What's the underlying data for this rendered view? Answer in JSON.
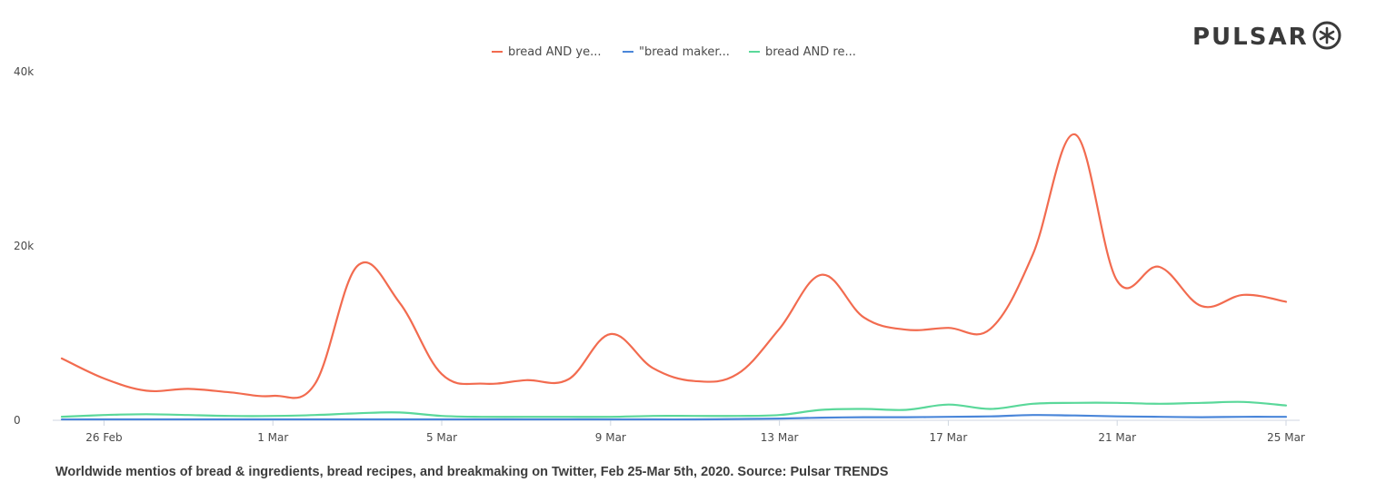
{
  "logo": {
    "text": "PULSAR"
  },
  "caption": "Worldwide mentios of bread & ingredients, bread recipes, and breakmaking on Twitter, Feb 25-Mar 5th, 2020. Source: Pulsar TRENDS",
  "chart_data": {
    "type": "line",
    "x": [
      "25 Feb",
      "26 Feb",
      "27 Feb",
      "28 Feb",
      "29 Feb",
      "1 Mar",
      "2 Mar",
      "3 Mar",
      "4 Mar",
      "5 Mar",
      "6 Mar",
      "7 Mar",
      "8 Mar",
      "9 Mar",
      "10 Mar",
      "11 Mar",
      "12 Mar",
      "13 Mar",
      "14 Mar",
      "15 Mar",
      "16 Mar",
      "17 Mar",
      "18 Mar",
      "19 Mar",
      "20 Mar",
      "21 Mar",
      "22 Mar",
      "23 Mar",
      "24 Mar",
      "25 Mar"
    ],
    "x_tick_labels": [
      "26 Feb",
      "1 Mar",
      "5 Mar",
      "9 Mar",
      "13 Mar",
      "17 Mar",
      "21 Mar",
      "25 Mar"
    ],
    "y_tick_labels": [
      "0",
      "20k",
      "40k"
    ],
    "ylim": [
      0,
      40000
    ],
    "legend_position": "top-center",
    "grid": false,
    "series": [
      {
        "name": "bread AND ye...",
        "color": "#f26b4f",
        "values": [
          7100,
          4800,
          3400,
          3600,
          3200,
          2800,
          4200,
          17700,
          13500,
          5300,
          4200,
          4600,
          4700,
          9900,
          6000,
          4500,
          5300,
          10500,
          16700,
          11800,
          10400,
          10600,
          10500,
          19000,
          32800,
          16000,
          17600,
          13100,
          14400,
          13600
        ]
      },
      {
        "name": "\"bread maker...",
        "color": "#4a86d9",
        "values": [
          100,
          100,
          100,
          100,
          100,
          100,
          100,
          100,
          100,
          100,
          100,
          100,
          100,
          100,
          100,
          100,
          150,
          200,
          300,
          350,
          350,
          400,
          450,
          600,
          550,
          450,
          400,
          350,
          400,
          400
        ]
      },
      {
        "name": "bread AND re...",
        "color": "#5ad89a",
        "values": [
          400,
          600,
          700,
          600,
          500,
          500,
          600,
          800,
          900,
          500,
          400,
          400,
          400,
          400,
          500,
          500,
          500,
          600,
          1200,
          1300,
          1200,
          1800,
          1300,
          1900,
          2000,
          2000,
          1900,
          2000,
          2100,
          1700
        ]
      }
    ]
  }
}
